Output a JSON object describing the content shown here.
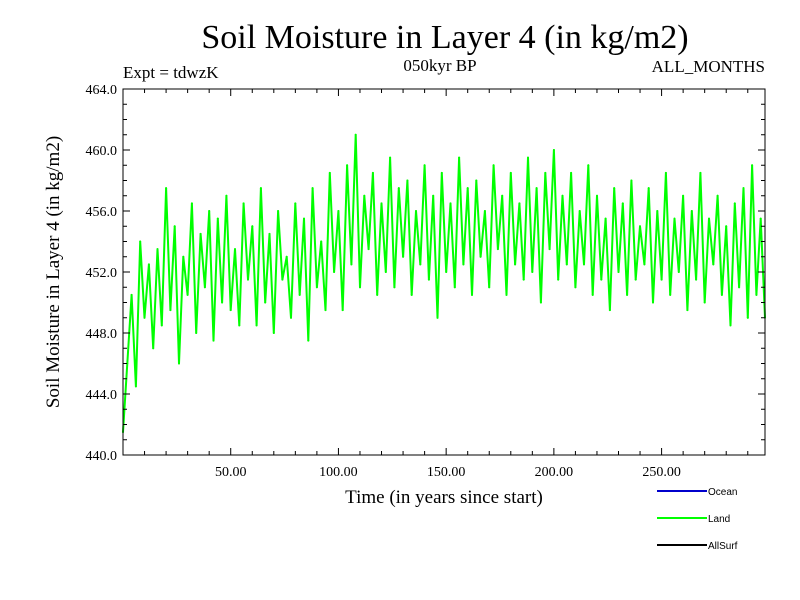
{
  "chart_data": {
    "type": "line",
    "title": "Soil Moisture in Layer 4 (in kg/m2)",
    "subtitle_left": "Expt = tdwzK",
    "subtitle_center": "050kyr BP",
    "subtitle_right": "ALL_MONTHS",
    "xlabel": "Time (in years since start)",
    "ylabel": "Soil Moisture in Layer 4 (in kg/m2)",
    "xlim": [
      0,
      298
    ],
    "ylim": [
      440,
      464
    ],
    "x_ticks": [
      50,
      100,
      150,
      200,
      250
    ],
    "x_tick_labels": [
      "50.00",
      "100.00",
      "150.00",
      "200.00",
      "250.00"
    ],
    "y_ticks": [
      440,
      444,
      448,
      452,
      456,
      460,
      464
    ],
    "y_tick_labels": [
      "440.0",
      "444.0",
      "448.0",
      "452.0",
      "456.0",
      "460.0",
      "464.0"
    ],
    "grid": false,
    "legend_position": "bottom-right",
    "legend": [
      {
        "name": "Ocean",
        "color": "#0000cc"
      },
      {
        "name": "Land",
        "color": "#00ff00"
      },
      {
        "name": "AllSurf",
        "color": "#000000"
      }
    ],
    "series": [
      {
        "name": "Land",
        "color": "#00ff00",
        "x": [
          0,
          2,
          4,
          6,
          8,
          10,
          12,
          14,
          16,
          18,
          20,
          22,
          24,
          26,
          28,
          30,
          32,
          34,
          36,
          38,
          40,
          42,
          44,
          46,
          48,
          50,
          52,
          54,
          56,
          58,
          60,
          62,
          64,
          66,
          68,
          70,
          72,
          74,
          76,
          78,
          80,
          82,
          84,
          86,
          88,
          90,
          92,
          94,
          96,
          98,
          100,
          102,
          104,
          106,
          108,
          110,
          112,
          114,
          116,
          118,
          120,
          122,
          124,
          126,
          128,
          130,
          132,
          134,
          136,
          138,
          140,
          142,
          144,
          146,
          148,
          150,
          152,
          154,
          156,
          158,
          160,
          162,
          164,
          166,
          168,
          170,
          172,
          174,
          176,
          178,
          180,
          182,
          184,
          186,
          188,
          190,
          192,
          194,
          196,
          198,
          200,
          202,
          204,
          206,
          208,
          210,
          212,
          214,
          216,
          218,
          220,
          222,
          224,
          226,
          228,
          230,
          232,
          234,
          236,
          238,
          240,
          242,
          244,
          246,
          248,
          250,
          252,
          254,
          256,
          258,
          260,
          262,
          264,
          266,
          268,
          270,
          272,
          274,
          276,
          278,
          280,
          282,
          284,
          286,
          288,
          290,
          292,
          294,
          296,
          298
        ],
        "values": [
          441.5,
          446.0,
          450.5,
          444.5,
          454.0,
          449.0,
          452.5,
          447.0,
          453.5,
          448.5,
          457.5,
          449.5,
          455.0,
          446.0,
          453.0,
          450.5,
          456.5,
          448.0,
          454.5,
          451.0,
          456.0,
          447.5,
          455.5,
          450.0,
          457.0,
          449.5,
          453.5,
          448.5,
          456.5,
          451.5,
          455.0,
          448.5,
          457.5,
          450.0,
          454.5,
          448.0,
          456.0,
          451.5,
          453.0,
          449.0,
          456.5,
          450.5,
          455.5,
          447.5,
          457.5,
          451.0,
          454.0,
          449.5,
          458.5,
          452.0,
          456.0,
          449.5,
          459.0,
          452.5,
          461.0,
          451.0,
          457.0,
          453.5,
          458.5,
          450.5,
          456.5,
          452.0,
          459.5,
          451.0,
          457.5,
          453.0,
          458.0,
          450.5,
          456.0,
          452.5,
          459.0,
          451.5,
          457.0,
          449.0,
          458.5,
          452.0,
          456.5,
          451.0,
          459.5,
          452.5,
          457.5,
          450.5,
          458.0,
          453.0,
          456.0,
          451.0,
          459.0,
          453.5,
          457.0,
          450.5,
          458.5,
          452.5,
          456.5,
          451.5,
          459.5,
          452.0,
          457.5,
          450.0,
          458.5,
          453.5,
          460.0,
          451.5,
          457.0,
          452.5,
          458.5,
          451.0,
          456.0,
          452.5,
          459.0,
          450.5,
          457.0,
          451.5,
          455.5,
          449.5,
          457.5,
          452.0,
          456.5,
          450.5,
          458.0,
          451.5,
          455.0,
          452.5,
          457.5,
          450.0,
          456.0,
          451.5,
          458.5,
          450.5,
          455.5,
          452.0,
          457.0,
          449.5,
          456.0,
          451.5,
          458.5,
          450.0,
          455.5,
          452.5,
          457.0,
          450.5,
          455.0,
          448.5,
          456.5,
          451.0,
          457.5,
          449.0,
          459.0,
          450.5,
          455.5,
          449.0
        ]
      }
    ]
  }
}
